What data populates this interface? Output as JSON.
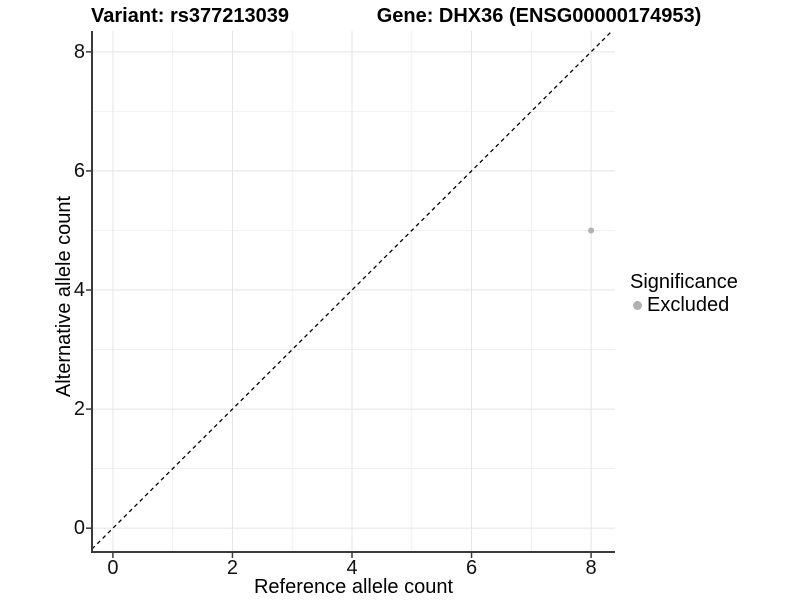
{
  "titles": {
    "left": "Variant: rs377213039",
    "right": "Gene: DHX36 (ENSG00000174953)"
  },
  "legend": {
    "title": "Significance",
    "items": [
      {
        "label": "Excluded",
        "color": "#b0b0b0"
      }
    ]
  },
  "chart_data": {
    "type": "scatter",
    "title": "Variant: rs377213039  /  Gene: DHX36 (ENSG00000174953)",
    "xlabel": "Reference allele count",
    "ylabel": "Alternative allele count",
    "xlim": [
      -0.35,
      8.4
    ],
    "ylim": [
      -0.4,
      8.35
    ],
    "x_major_ticks": [
      0,
      2,
      4,
      6,
      8
    ],
    "y_major_ticks": [
      0,
      2,
      4,
      6,
      8
    ],
    "x_minor_ticks": [
      1,
      3,
      5,
      7
    ],
    "y_minor_ticks": [
      1,
      3,
      5,
      7
    ],
    "grid": "major+minor",
    "legend_position": "right",
    "series": [
      {
        "name": "Excluded",
        "points": [
          {
            "x": 8,
            "y": 5
          }
        ],
        "color": "#b0b0b0",
        "point_radius": 3
      }
    ],
    "reference_line": {
      "slope": 1,
      "intercept": 0,
      "style": "dashed",
      "color": "#000000"
    },
    "colors": {
      "background": "#ffffff",
      "grid_major": "#e4e4e4",
      "grid_minor": "#f0f0f0",
      "axis_line": "#3a3a3a",
      "tick": "#3a3a3a"
    }
  }
}
